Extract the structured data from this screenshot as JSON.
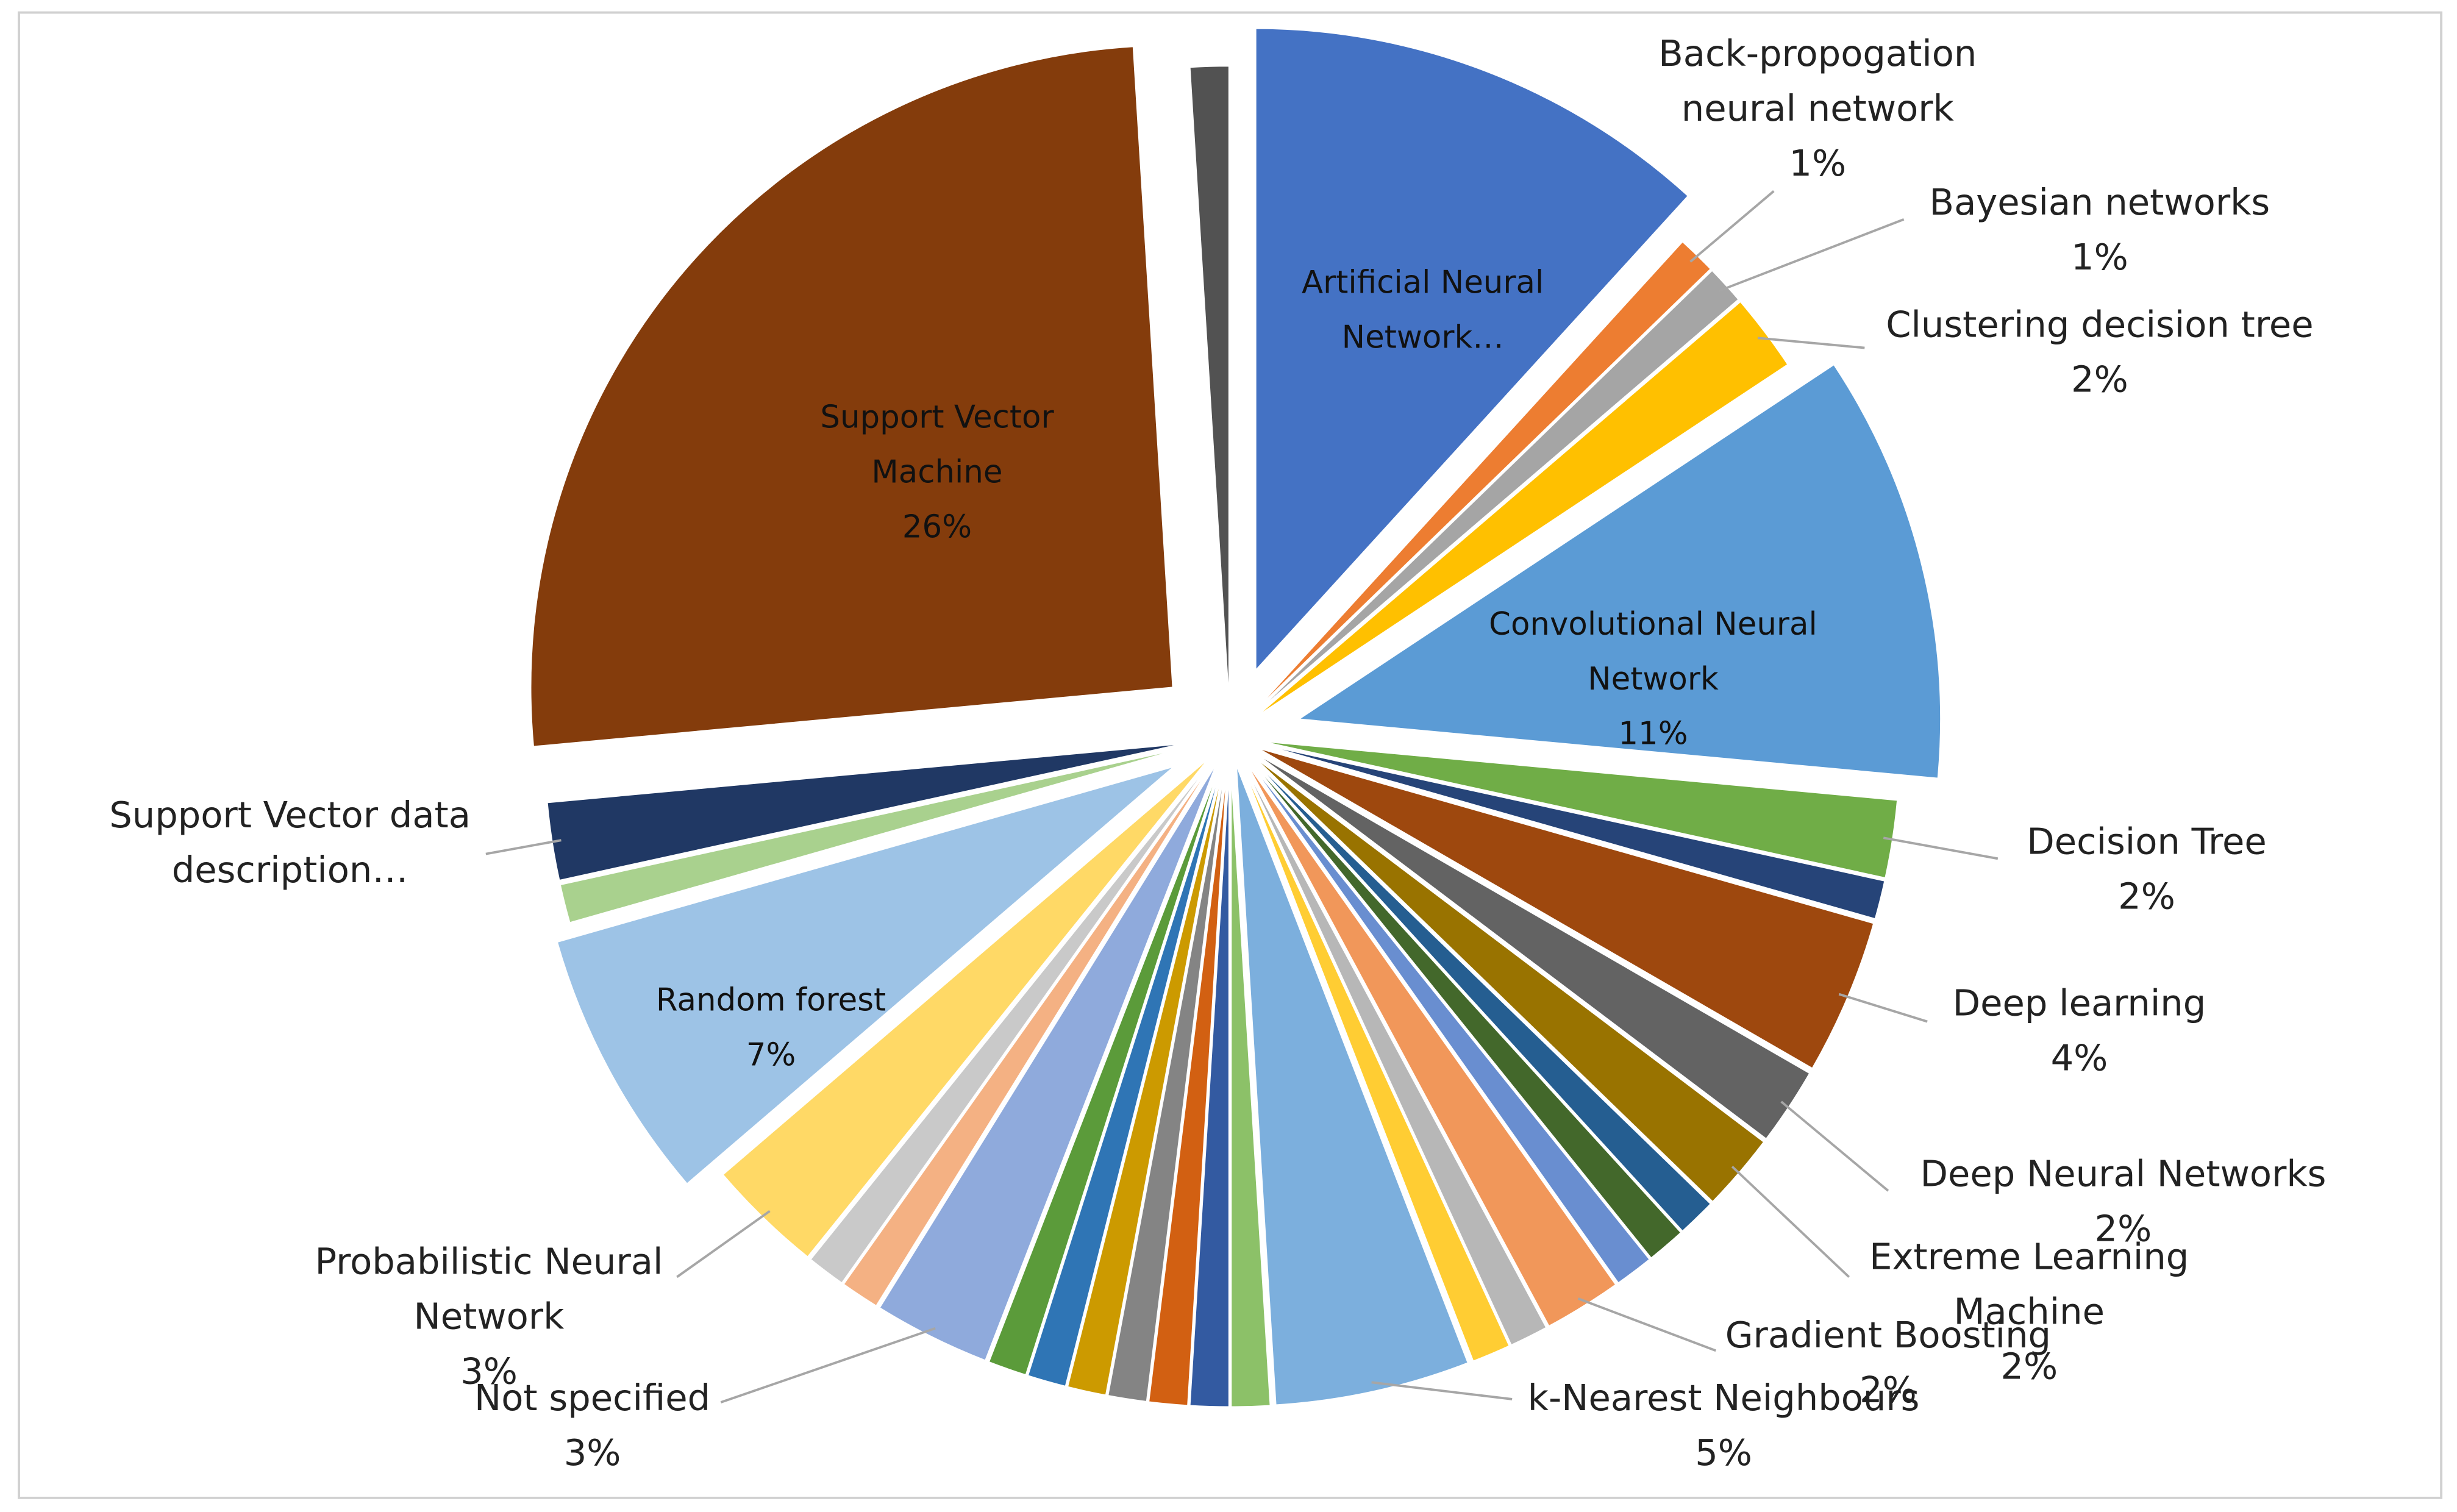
{
  "chart_data": {
    "type": "pie",
    "categories": [
      "Artificial Neural Network…",
      "Back-propogation neural network",
      "Bayesian networks",
      "Clustering decision tree",
      "Convolutional Neural Network",
      "Decision Tree",
      null,
      "Deep learning",
      "Deep Neural Networks",
      "Extreme Learning Machine",
      null,
      null,
      null,
      "Gradient Boosting",
      null,
      null,
      "k-Nearest Neighbours",
      null,
      null,
      null,
      null,
      null,
      null,
      null,
      "Not specified",
      null,
      null,
      "Probabilistic Neural Network",
      "Random forest",
      null,
      "Support Vector data description…",
      "Support Vector Machine",
      null
    ],
    "values": [
      12,
      1,
      1,
      2,
      11,
      2,
      1,
      4,
      2,
      2,
      1,
      1,
      1,
      2,
      1,
      1,
      5,
      1,
      1,
      1,
      1,
      1,
      1,
      1,
      3,
      1,
      1,
      3,
      7,
      1,
      2,
      26,
      1
    ],
    "value_labels": [
      null,
      "1%",
      "1%",
      "2%",
      "11%",
      "2%",
      null,
      "4%",
      "2%",
      "2%",
      null,
      null,
      null,
      "2%",
      null,
      null,
      "5%",
      null,
      null,
      null,
      null,
      null,
      null,
      null,
      "3%",
      null,
      null,
      "3%",
      "7%",
      null,
      null,
      "26%",
      null
    ],
    "colors": [
      "#4472c4",
      "#ed7d31",
      "#a5a5a5",
      "#ffc000",
      "#5b9bd5",
      "#70ad47",
      "#264478",
      "#9e480e",
      "#636363",
      "#997300",
      "#255e91",
      "#43682b",
      "#698ed0",
      "#f1975a",
      "#b7b7b7",
      "#ffcd33",
      "#7cafdd",
      "#8cc168",
      "#335aa1",
      "#d26012",
      "#848484",
      "#cc9a00",
      "#2f75b5",
      "#5b9b3a",
      "#8faadc",
      "#f4b183",
      "#c9c9c9",
      "#ffd966",
      "#9dc3e6",
      "#a9d18e",
      "#203864",
      "#843c0c",
      "#525252"
    ]
  }
}
